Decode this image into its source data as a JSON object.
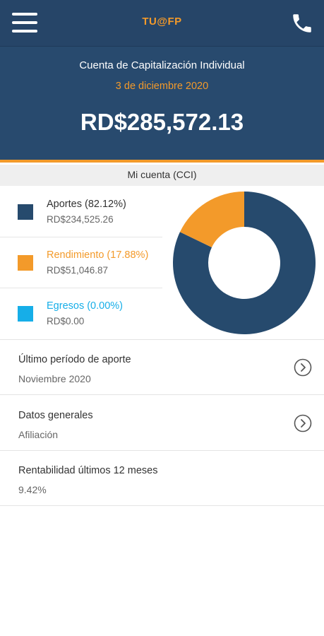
{
  "app": {
    "title": "TU@FP"
  },
  "account": {
    "name": "Cuenta de Capitalización Individual",
    "date": "3 de diciembre 2020",
    "balance": "RD$285,572.13"
  },
  "section": {
    "title": "Mi cuenta (CCI)"
  },
  "legend": [
    {
      "label": "Aportes (82.12%)",
      "value": "RD$234,525.26",
      "color": "#264a6d",
      "label_color": "#333333"
    },
    {
      "label": "Rendimiento (17.88%)",
      "value": "RD$51,046.87",
      "color": "#f39a2a",
      "label_color": "#f39a2a"
    },
    {
      "label": "Egresos (0.00%)",
      "value": "RD$0.00",
      "color": "#16aee8",
      "label_color": "#16aee8"
    }
  ],
  "chart_data": {
    "type": "pie",
    "categories": [
      "Aportes",
      "Rendimiento",
      "Egresos"
    ],
    "values": [
      82.12,
      17.88,
      0.0
    ],
    "colors": [
      "#264a6d",
      "#f39a2a",
      "#16aee8"
    ]
  },
  "info": [
    {
      "title": "Último período de aporte",
      "subtitle": "Noviembre 2020",
      "has_chevron": true
    },
    {
      "title": "Datos generales",
      "subtitle": "Afiliación",
      "has_chevron": true
    },
    {
      "title": "Rentabilidad últimos 12 meses",
      "subtitle": "9.42%",
      "has_chevron": false
    }
  ],
  "icons": {
    "menu": "hamburger-menu-icon",
    "phone": "phone-icon",
    "chevron": "chevron-right-circle-icon"
  }
}
